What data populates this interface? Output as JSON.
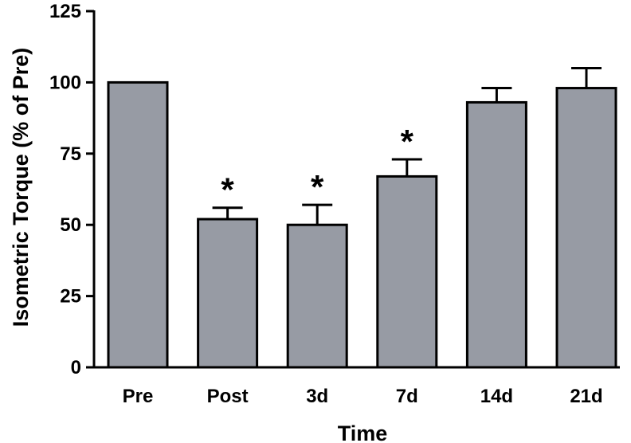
{
  "chart_data": {
    "type": "bar",
    "title": "",
    "xlabel": "Time",
    "ylabel": "Isometric Torque  (% of Pre)",
    "ylim": [
      0,
      125
    ],
    "yticks": [
      0,
      25,
      50,
      75,
      100,
      125
    ],
    "categories": [
      "Pre",
      "Post",
      "3d",
      "7d",
      "14d",
      "21d"
    ],
    "values": [
      100,
      52,
      50,
      67,
      93,
      98
    ],
    "error_upper": [
      0,
      4,
      7,
      6,
      5,
      7
    ],
    "significant": [
      false,
      true,
      true,
      true,
      false,
      false
    ],
    "significance_marker": "*",
    "bar_color": "#979ba4",
    "grid": false
  }
}
